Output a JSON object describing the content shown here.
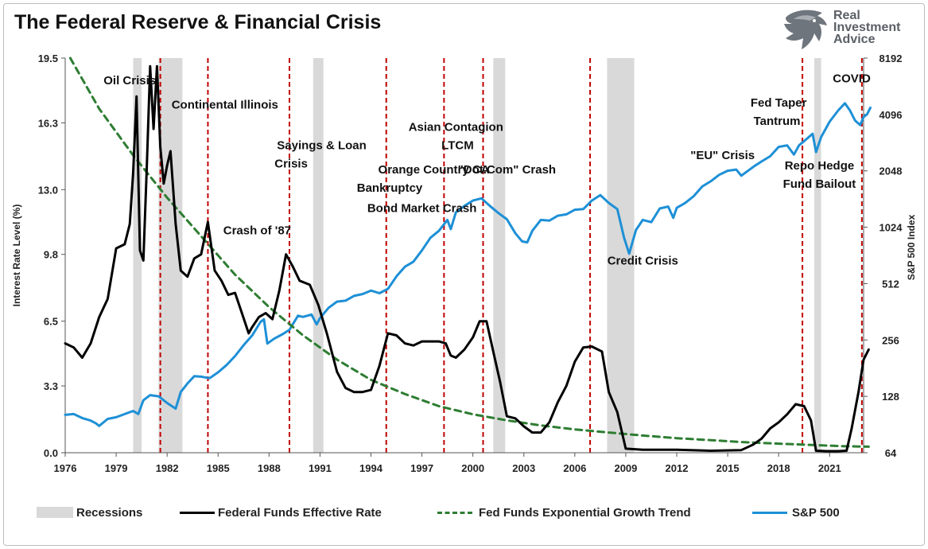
{
  "header": {
    "title": "The Federal Reserve & Financial Crisis"
  },
  "logo": {
    "lines": [
      "Real",
      "Investment",
      "Advice"
    ]
  },
  "legend": {
    "recessions": "Recessions",
    "fed_funds": "Federal Funds Effective Rate",
    "trend": "Fed Funds Exponential Growth Trend",
    "sp500": "S&P 500"
  },
  "colors": {
    "fed_funds": "#000000",
    "trend": "#2e7d32",
    "sp500": "#1e90d6",
    "recession": "#d9d9d9",
    "crisis_line": "#c00000"
  },
  "chart_data": {
    "type": "line",
    "title": "The Federal Reserve & Financial Crisis",
    "ylabel": "Interest Rate Level (%)",
    "y2label": "S&P 500 Index",
    "xlim": [
      1976,
      2023
    ],
    "ylim": [
      0,
      19.5
    ],
    "y2_scale": "log2",
    "y2lim": [
      64,
      8192
    ],
    "x_ticks": [
      "1976",
      "1979",
      "1982",
      "1985",
      "1988",
      "1991",
      "1994",
      "1997",
      "2000",
      "2003",
      "2006",
      "2009",
      "2012",
      "2015",
      "2018",
      "2021"
    ],
    "y_ticks": [
      "0.0",
      "3.3",
      "6.5",
      "9.8",
      "13.0",
      "16.3",
      "19.5"
    ],
    "y2_ticks": [
      "64",
      "128",
      "256",
      "512",
      "1024",
      "2048",
      "4096",
      "8192"
    ],
    "grid": false,
    "legend_position": "bottom",
    "recessions": [
      [
        1980.0,
        1980.5
      ],
      [
        1981.5,
        1982.9
      ],
      [
        1990.6,
        1991.2
      ],
      [
        2001.2,
        2001.9
      ],
      [
        2007.9,
        2009.5
      ],
      [
        2020.1,
        2020.5
      ]
    ],
    "crisis_lines": [
      1981.6,
      1984.4,
      1989.2,
      1994.9,
      1998.3,
      2000.6,
      2006.9,
      2019.4,
      2022.9
    ],
    "annotations": [
      {
        "text": "Oil Crisis",
        "x": 1979.8,
        "y": 18.2
      },
      {
        "text": "Continental Illinois",
        "x": 1985.4,
        "y": 17.0
      },
      {
        "text": "Sayings & Loan",
        "x": 1991.1,
        "y": 15.0
      },
      {
        "text": "Crisis",
        "x": 1989.3,
        "y": 14.1
      },
      {
        "text": "Orange Country CA",
        "x": 1997.7,
        "y": 13.8
      },
      {
        "text": "Bankruptcy",
        "x": 1995.1,
        "y": 12.9
      },
      {
        "text": "Bond Market Crash",
        "x": 1997.0,
        "y": 11.9
      },
      {
        "text": "Asian Contagion",
        "x": 1999.0,
        "y": 15.9
      },
      {
        "text": "LTCM",
        "x": 1999.1,
        "y": 15.0
      },
      {
        "text": "\"Dot.Com\" Crash",
        "x": 2002.0,
        "y": 13.8
      },
      {
        "text": "Crash of '87",
        "x": 1987.3,
        "y": 10.8
      },
      {
        "text": "Credit Crisis",
        "x": 2010.0,
        "y": 9.3
      },
      {
        "text": "\"EU\" Crisis",
        "x": 2014.7,
        "y": 14.5
      },
      {
        "text": "Fed Taper",
        "x": 2018.0,
        "y": 17.1
      },
      {
        "text": "Tantrum",
        "x": 2017.9,
        "y": 16.2
      },
      {
        "text": "Repo Hedge",
        "x": 2020.4,
        "y": 14.0
      },
      {
        "text": "Fund Bailout",
        "x": 2020.4,
        "y": 13.1
      },
      {
        "text": "COVID",
        "x": 2022.3,
        "y": 18.3
      }
    ],
    "series": [
      {
        "name": "Federal Funds Effective Rate",
        "axis": "left",
        "points": [
          [
            1976.0,
            5.4
          ],
          [
            1976.5,
            5.2
          ],
          [
            1977.0,
            4.7
          ],
          [
            1977.5,
            5.4
          ],
          [
            1978.0,
            6.7
          ],
          [
            1978.5,
            7.6
          ],
          [
            1979.0,
            10.1
          ],
          [
            1979.5,
            10.3
          ],
          [
            1979.8,
            11.3
          ],
          [
            1980.0,
            13.8
          ],
          [
            1980.2,
            17.6
          ],
          [
            1980.4,
            10.0
          ],
          [
            1980.6,
            9.5
          ],
          [
            1980.8,
            14.0
          ],
          [
            1981.0,
            19.1
          ],
          [
            1981.2,
            16.0
          ],
          [
            1981.4,
            19.1
          ],
          [
            1981.6,
            15.1
          ],
          [
            1981.8,
            13.3
          ],
          [
            1982.0,
            14.2
          ],
          [
            1982.2,
            14.9
          ],
          [
            1982.5,
            11.3
          ],
          [
            1982.8,
            9.0
          ],
          [
            1983.2,
            8.7
          ],
          [
            1983.6,
            9.6
          ],
          [
            1984.0,
            9.8
          ],
          [
            1984.4,
            11.4
          ],
          [
            1984.8,
            9.0
          ],
          [
            1985.2,
            8.5
          ],
          [
            1985.6,
            7.8
          ],
          [
            1986.0,
            7.9
          ],
          [
            1986.4,
            6.9
          ],
          [
            1986.8,
            5.9
          ],
          [
            1987.0,
            6.2
          ],
          [
            1987.4,
            6.7
          ],
          [
            1987.8,
            6.9
          ],
          [
            1988.2,
            6.6
          ],
          [
            1988.6,
            8.0
          ],
          [
            1989.0,
            9.8
          ],
          [
            1989.4,
            9.2
          ],
          [
            1989.8,
            8.5
          ],
          [
            1990.4,
            8.3
          ],
          [
            1990.9,
            7.3
          ],
          [
            1991.4,
            5.9
          ],
          [
            1992.0,
            4.0
          ],
          [
            1992.5,
            3.2
          ],
          [
            1993.0,
            3.0
          ],
          [
            1993.5,
            3.0
          ],
          [
            1994.0,
            3.1
          ],
          [
            1994.5,
            4.3
          ],
          [
            1995.0,
            5.9
          ],
          [
            1995.5,
            5.8
          ],
          [
            1996.0,
            5.4
          ],
          [
            1996.5,
            5.3
          ],
          [
            1997.0,
            5.5
          ],
          [
            1997.5,
            5.5
          ],
          [
            1998.0,
            5.5
          ],
          [
            1998.4,
            5.4
          ],
          [
            1998.7,
            4.8
          ],
          [
            1999.0,
            4.7
          ],
          [
            1999.5,
            5.1
          ],
          [
            2000.0,
            5.7
          ],
          [
            2000.4,
            6.5
          ],
          [
            2000.8,
            6.5
          ],
          [
            2001.2,
            5.0
          ],
          [
            2001.6,
            3.5
          ],
          [
            2002.0,
            1.8
          ],
          [
            2002.5,
            1.7
          ],
          [
            2003.0,
            1.3
          ],
          [
            2003.5,
            1.0
          ],
          [
            2004.0,
            1.0
          ],
          [
            2004.5,
            1.5
          ],
          [
            2005.0,
            2.5
          ],
          [
            2005.5,
            3.3
          ],
          [
            2006.0,
            4.5
          ],
          [
            2006.5,
            5.2
          ],
          [
            2007.0,
            5.25
          ],
          [
            2007.6,
            5.0
          ],
          [
            2008.0,
            3.0
          ],
          [
            2008.5,
            2.0
          ],
          [
            2009.0,
            0.2
          ],
          [
            2010.0,
            0.15
          ],
          [
            2012.0,
            0.15
          ],
          [
            2014.0,
            0.1
          ],
          [
            2015.8,
            0.13
          ],
          [
            2016.5,
            0.4
          ],
          [
            2017.0,
            0.7
          ],
          [
            2017.5,
            1.2
          ],
          [
            2018.0,
            1.5
          ],
          [
            2018.5,
            1.9
          ],
          [
            2019.0,
            2.4
          ],
          [
            2019.5,
            2.3
          ],
          [
            2019.9,
            1.6
          ],
          [
            2020.2,
            0.1
          ],
          [
            2020.8,
            0.08
          ],
          [
            2021.5,
            0.08
          ],
          [
            2022.0,
            0.1
          ],
          [
            2022.3,
            1.2
          ],
          [
            2022.7,
            3.0
          ],
          [
            2023.0,
            4.6
          ],
          [
            2023.3,
            5.1
          ]
        ]
      },
      {
        "name": "S&P 500",
        "axis": "right",
        "points": [
          [
            1976.0,
            102
          ],
          [
            1976.5,
            103
          ],
          [
            1977.0,
            98
          ],
          [
            1977.5,
            95
          ],
          [
            1977.8,
            92
          ],
          [
            1978.0,
            89
          ],
          [
            1978.5,
            97
          ],
          [
            1979.0,
            99
          ],
          [
            1979.5,
            103
          ],
          [
            1980.0,
            107
          ],
          [
            1980.3,
            103
          ],
          [
            1980.6,
            122
          ],
          [
            1981.0,
            130
          ],
          [
            1981.5,
            128
          ],
          [
            1982.0,
            118
          ],
          [
            1982.5,
            110
          ],
          [
            1982.8,
            135
          ],
          [
            1983.2,
            150
          ],
          [
            1983.6,
            164
          ],
          [
            1984.0,
            163
          ],
          [
            1984.5,
            160
          ],
          [
            1985.0,
            172
          ],
          [
            1985.5,
            188
          ],
          [
            1986.0,
            210
          ],
          [
            1986.5,
            240
          ],
          [
            1987.0,
            270
          ],
          [
            1987.5,
            320
          ],
          [
            1987.7,
            330
          ],
          [
            1987.9,
            245
          ],
          [
            1988.3,
            260
          ],
          [
            1988.8,
            275
          ],
          [
            1989.2,
            290
          ],
          [
            1989.7,
            345
          ],
          [
            1990.0,
            340
          ],
          [
            1990.5,
            350
          ],
          [
            1990.8,
            310
          ],
          [
            1991.0,
            335
          ],
          [
            1991.5,
            380
          ],
          [
            1992.0,
            410
          ],
          [
            1992.5,
            415
          ],
          [
            1993.0,
            440
          ],
          [
            1993.5,
            450
          ],
          [
            1994.0,
            470
          ],
          [
            1994.5,
            455
          ],
          [
            1995.0,
            480
          ],
          [
            1995.5,
            560
          ],
          [
            1996.0,
            630
          ],
          [
            1996.5,
            670
          ],
          [
            1997.0,
            770
          ],
          [
            1997.5,
            900
          ],
          [
            1998.0,
            980
          ],
          [
            1998.5,
            1120
          ],
          [
            1998.7,
            1000
          ],
          [
            1999.0,
            1230
          ],
          [
            1999.5,
            1330
          ],
          [
            2000.0,
            1420
          ],
          [
            2000.5,
            1460
          ],
          [
            2001.0,
            1330
          ],
          [
            2001.5,
            1220
          ],
          [
            2002.0,
            1130
          ],
          [
            2002.5,
            950
          ],
          [
            2002.9,
            860
          ],
          [
            2003.2,
            850
          ],
          [
            2003.5,
            980
          ],
          [
            2004.0,
            1120
          ],
          [
            2004.5,
            1110
          ],
          [
            2005.0,
            1180
          ],
          [
            2005.5,
            1200
          ],
          [
            2006.0,
            1270
          ],
          [
            2006.5,
            1280
          ],
          [
            2007.0,
            1420
          ],
          [
            2007.5,
            1520
          ],
          [
            2008.0,
            1380
          ],
          [
            2008.5,
            1280
          ],
          [
            2008.9,
            900
          ],
          [
            2009.2,
            740
          ],
          [
            2009.6,
            990
          ],
          [
            2010.0,
            1120
          ],
          [
            2010.5,
            1090
          ],
          [
            2011.0,
            1290
          ],
          [
            2011.5,
            1320
          ],
          [
            2011.8,
            1150
          ],
          [
            2012.0,
            1300
          ],
          [
            2012.5,
            1380
          ],
          [
            2013.0,
            1500
          ],
          [
            2013.5,
            1690
          ],
          [
            2014.0,
            1800
          ],
          [
            2014.5,
            1950
          ],
          [
            2015.0,
            2050
          ],
          [
            2015.5,
            2080
          ],
          [
            2015.8,
            1930
          ],
          [
            2016.2,
            2050
          ],
          [
            2016.6,
            2180
          ],
          [
            2017.0,
            2300
          ],
          [
            2017.5,
            2450
          ],
          [
            2018.0,
            2750
          ],
          [
            2018.5,
            2800
          ],
          [
            2018.9,
            2500
          ],
          [
            2019.2,
            2800
          ],
          [
            2019.5,
            2950
          ],
          [
            2020.0,
            3230
          ],
          [
            2020.2,
            2580
          ],
          [
            2020.5,
            3100
          ],
          [
            2021.0,
            3750
          ],
          [
            2021.5,
            4300
          ],
          [
            2021.9,
            4700
          ],
          [
            2022.2,
            4300
          ],
          [
            2022.5,
            3800
          ],
          [
            2022.8,
            3600
          ],
          [
            2023.0,
            3970
          ],
          [
            2023.2,
            4100
          ],
          [
            2023.4,
            4450
          ]
        ]
      },
      {
        "name": "Fed Funds Exponential Growth Trend",
        "axis": "left",
        "style": "dashed",
        "points": [
          [
            1976.3,
            19.5
          ],
          [
            1978.0,
            17.0
          ],
          [
            1980.0,
            14.7
          ],
          [
            1982.0,
            12.6
          ],
          [
            1984.0,
            10.7
          ],
          [
            1986.0,
            8.8
          ],
          [
            1988.0,
            7.2
          ],
          [
            1990.0,
            5.8
          ],
          [
            1992.0,
            4.6
          ],
          [
            1994.0,
            3.6
          ],
          [
            1996.0,
            2.9
          ],
          [
            1998.0,
            2.3
          ],
          [
            2000.0,
            1.9
          ],
          [
            2002.0,
            1.6
          ],
          [
            2004.0,
            1.35
          ],
          [
            2006.0,
            1.15
          ],
          [
            2008.0,
            1.0
          ],
          [
            2010.0,
            0.85
          ],
          [
            2012.0,
            0.72
          ],
          [
            2014.0,
            0.62
          ],
          [
            2016.0,
            0.52
          ],
          [
            2018.0,
            0.45
          ],
          [
            2020.0,
            0.38
          ],
          [
            2022.0,
            0.32
          ],
          [
            2023.3,
            0.3
          ]
        ]
      }
    ]
  }
}
